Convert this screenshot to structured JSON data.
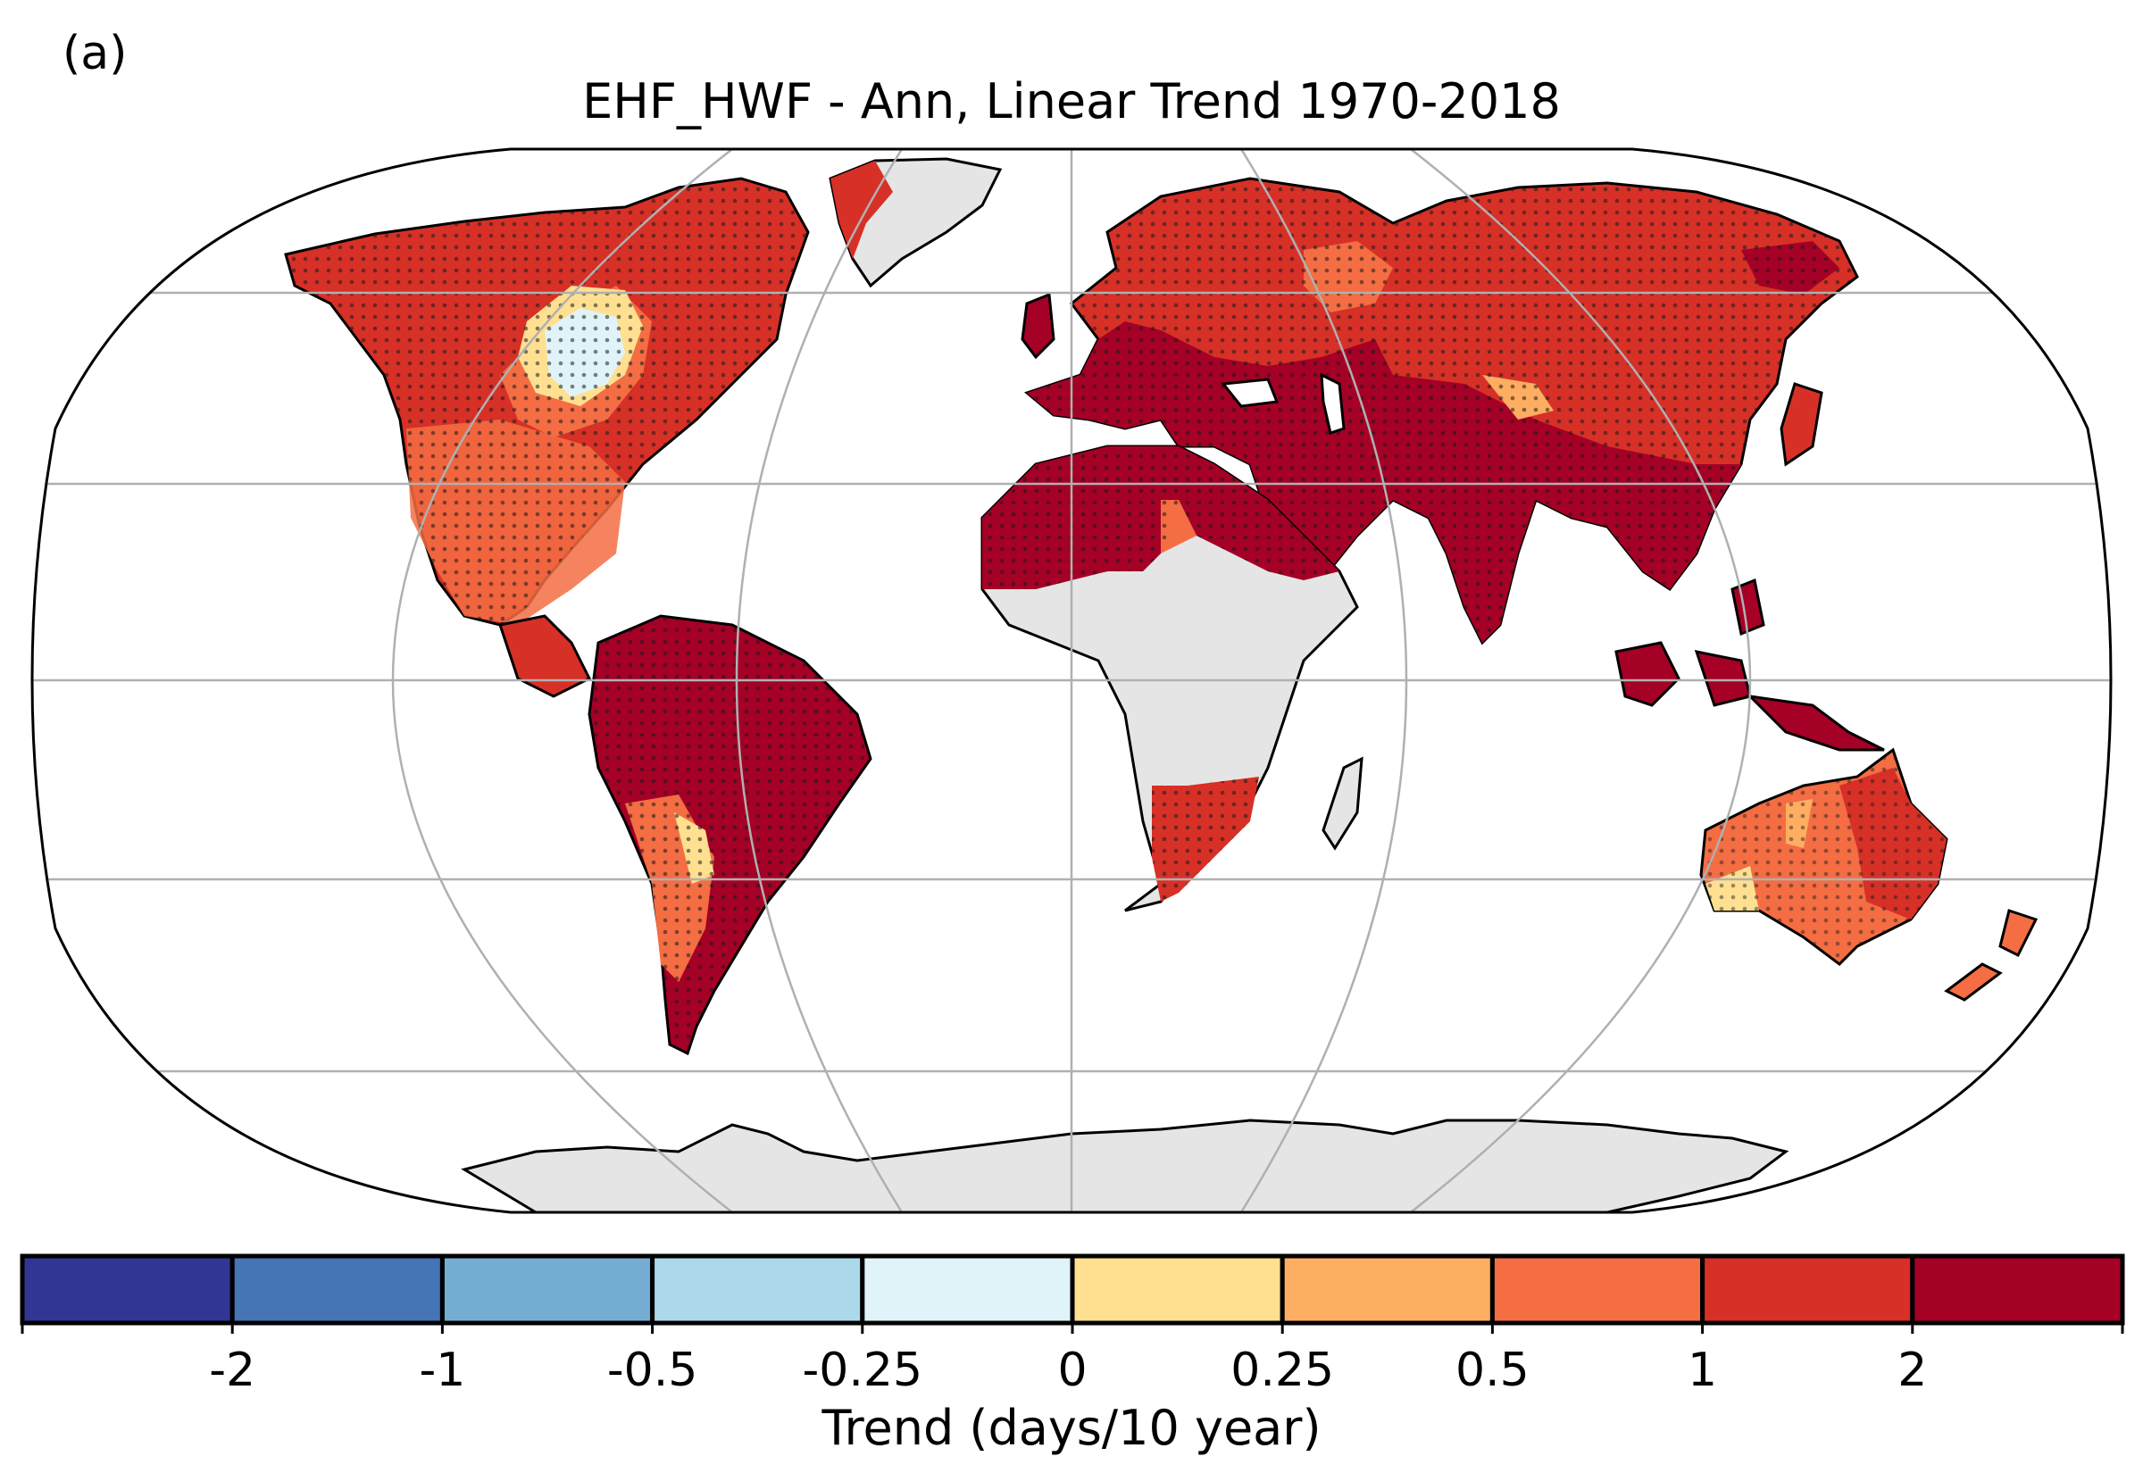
{
  "panel_label": "(a)",
  "title": "EHF_HWF - Ann, Linear Trend 1970-2018",
  "colorbar": {
    "label": "Trend (days/10 year)",
    "ticks": [
      "-2",
      "-1",
      "-0.5",
      "-0.25",
      "0",
      "0.25",
      "0.5",
      "1",
      "2"
    ],
    "colors": [
      "#313695",
      "#4575b4",
      "#74add1",
      "#abd9e9",
      "#e0f3f8",
      "#fee090",
      "#fdae61",
      "#f46d43",
      "#d73027",
      "#a50026"
    ]
  },
  "map": {
    "projection": "Robinson",
    "no_data_color": "#e5e5e5",
    "gridlines": true,
    "stippling": "statistically significant trend",
    "regions": [
      {
        "name": "North America",
        "trend_class": "#d73027"
      },
      {
        "name": "Central Canada",
        "trend_class": "#e0f3f8"
      },
      {
        "name": "Greenland",
        "trend_class": "no-data"
      },
      {
        "name": "South America",
        "trend_class": "#a50026"
      },
      {
        "name": "Europe",
        "trend_class": "#a50026"
      },
      {
        "name": "Northern Asia",
        "trend_class": "#d73027"
      },
      {
        "name": "Middle East",
        "trend_class": "#a50026"
      },
      {
        "name": "Southern Asia",
        "trend_class": "#a50026"
      },
      {
        "name": "North Africa",
        "trend_class": "#a50026"
      },
      {
        "name": "Central Africa",
        "trend_class": "no-data"
      },
      {
        "name": "Southern Africa",
        "trend_class": "#d73027"
      },
      {
        "name": "Madagascar",
        "trend_class": "no-data"
      },
      {
        "name": "Maritime Southeast Asia",
        "trend_class": "#a50026"
      },
      {
        "name": "Australia",
        "trend_class": "#f46d43"
      },
      {
        "name": "New Zealand",
        "trend_class": "#f46d43"
      },
      {
        "name": "Antarctica",
        "trend_class": "no-data"
      }
    ]
  }
}
